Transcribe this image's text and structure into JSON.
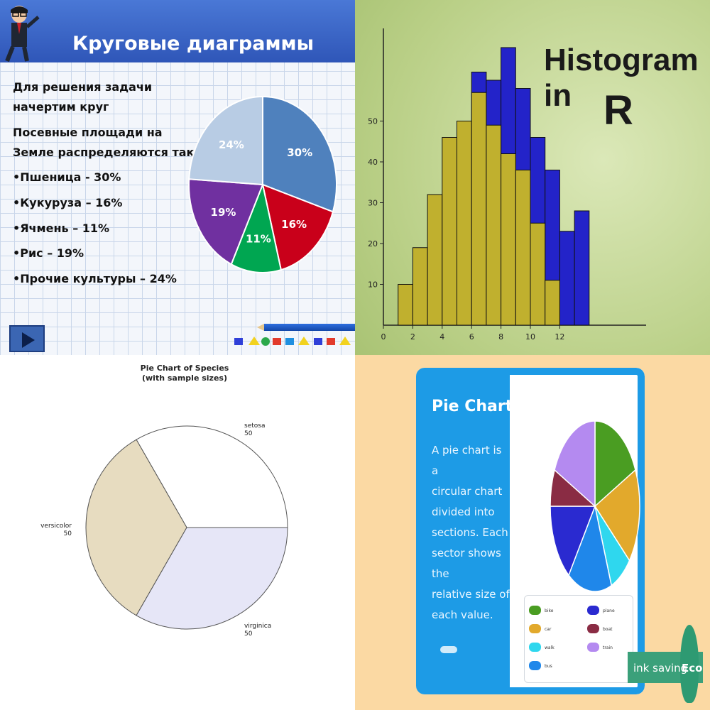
{
  "colors": {
    "p1_banner": "#2f56b8",
    "p2_blue": "#2323c9",
    "p2_gold": "#c0b02e",
    "p4_card": "#1d9be6",
    "p4_bg": "#fbd9a3"
  },
  "panel1": {
    "title": "Круговые диаграммы",
    "lines": [
      "Для решения задачи",
      "начертим круг",
      "Посевные площади на",
      "Земле распределяются так:",
      "•Пшеница - 30%",
      "•Кукуруза – 16%",
      "•Ячмень – 11%",
      "•Рис – 19%",
      "•Прочие культуры – 24%"
    ],
    "play_icon": "play-button-icon",
    "mascot_icon": "cartoon-professor-icon"
  },
  "panel2": {
    "title_line1": "Histogram in",
    "title_line2": "R"
  },
  "panel3": {
    "title_line1": "Pie Chart of Species",
    "title_line2": "(with sample sizes)"
  },
  "panel4": {
    "title": "Pie Chart",
    "desc_lines": [
      "A pie chart is a",
      "circular chart",
      "divided into",
      "sections. Each",
      "sector shows the",
      "relative size of",
      "each value."
    ],
    "legend": [
      {
        "label": "bike",
        "color": "#4a9d22"
      },
      {
        "label": "plane",
        "color": "#2a2ad0"
      },
      {
        "label": "car",
        "color": "#e2a92c"
      },
      {
        "label": "boat",
        "color": "#8a2c44"
      },
      {
        "label": "walk",
        "color": "#2fd7ee"
      },
      {
        "label": "train",
        "color": "#b48af0"
      },
      {
        "label": "bus",
        "color": "#1f87ea"
      }
    ],
    "eco_label": "ink saving",
    "eco_word": "Eco"
  },
  "chart_data": [
    {
      "type": "pie",
      "title": "Круговые диаграммы",
      "categories": [
        "Пшеница",
        "Кукуруза",
        "Ячмень",
        "Рис",
        "Прочие культуры"
      ],
      "values": [
        30,
        16,
        11,
        19,
        24
      ],
      "labels": [
        "30%",
        "16%",
        "11%",
        "19%",
        "24%"
      ],
      "colors": [
        "#4f81bd",
        "#c9001a",
        "#00a651",
        "#7030a0",
        "#b8cce4"
      ]
    },
    {
      "type": "bar",
      "title": "Histogram in R",
      "x_ticks": [
        0,
        2,
        4,
        6,
        8,
        10,
        12
      ],
      "y_ticks": [
        10,
        20,
        30,
        40,
        50
      ],
      "xlim": [
        0,
        18
      ],
      "ylim": [
        0,
        70
      ],
      "bin_width": 1,
      "series": [
        {
          "bins": [
            1,
            2,
            3,
            4,
            5,
            6,
            7,
            8,
            9,
            10,
            11
          ],
          "values": [
            10,
            19,
            32,
            46,
            50,
            57,
            49,
            42,
            38,
            25,
            11
          ],
          "color": "#c0b02e"
        },
        {
          "bins": [
            6,
            7,
            8,
            9,
            10,
            11,
            12,
            13
          ],
          "values": [
            62,
            60,
            68,
            58,
            46,
            38,
            23,
            28
          ],
          "color": "#2323c9"
        }
      ]
    },
    {
      "type": "pie",
      "title": "Pie Chart of Species",
      "subtitle": "(with sample sizes)",
      "categories": [
        "setosa",
        "versicolor",
        "virginica"
      ],
      "values": [
        50,
        50,
        50
      ],
      "colors": [
        "#ffffff",
        "#e7dcc0",
        "#e6e6f7"
      ]
    },
    {
      "type": "pie",
      "title": "Pie Chart",
      "categories": [
        "bike",
        "car",
        "walk",
        "bus",
        "plane",
        "boat",
        "train"
      ],
      "values": [
        18,
        18,
        8,
        16,
        15,
        7,
        18
      ],
      "colors": [
        "#4a9d22",
        "#e2a92c",
        "#2fd7ee",
        "#1f87ea",
        "#2a2ad0",
        "#8a2c44",
        "#b48af0"
      ]
    }
  ]
}
